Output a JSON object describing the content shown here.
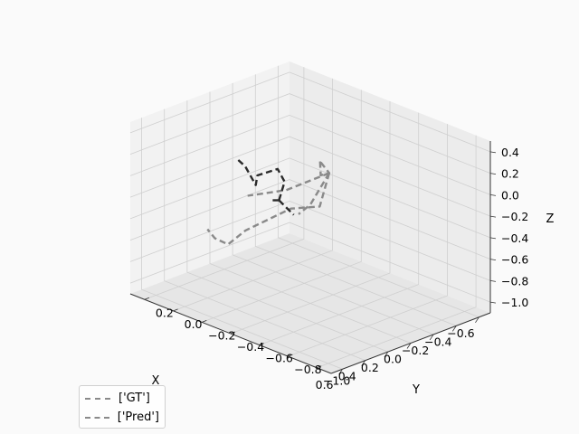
{
  "chart_data": {
    "type": "line3d",
    "title": "",
    "xlabel": "X",
    "ylabel": "Y",
    "zlabel": "Z",
    "xlim": [
      -0.7,
      0.7
    ],
    "ylim": [
      -1.1,
      0.3
    ],
    "zlim": [
      -1.1,
      0.5
    ],
    "xticks": [
      "−0.6",
      "−0.4",
      "−0.2",
      "0.0",
      "0.2",
      "0.4",
      "0.6"
    ],
    "yticks": [
      "−1.0",
      "−0.8",
      "−0.6",
      "−0.4",
      "−0.2",
      "0.0",
      "0.2"
    ],
    "zticks": [
      "0.4",
      "0.2",
      "0.0",
      "−0.2",
      "−0.4",
      "−0.6",
      "−0.8",
      "−1.0"
    ],
    "grid": true,
    "legend_position": "lower-left",
    "series": [
      {
        "name": "['GT']",
        "color": "#8a8a8a",
        "style": "dashed",
        "segments": [
          [
            [
              0.04,
              -0.5,
              0.29
            ],
            [
              0.06,
              -0.52,
              0.18
            ],
            [
              -0.04,
              -0.5,
              0.15
            ],
            [
              0.04,
              -0.5,
              0.29
            ]
          ],
          [
            [
              -0.04,
              -0.5,
              0.15
            ],
            [
              0.2,
              -0.39,
              0.03
            ],
            [
              0.4,
              -0.28,
              0.0
            ]
          ],
          [
            [
              -0.04,
              -0.5,
              0.15
            ],
            [
              0.0,
              -0.4,
              -0.18
            ],
            [
              0.04,
              -0.35,
              -0.28
            ]
          ],
          [
            [
              -0.04,
              -0.5,
              0.15
            ],
            [
              -0.02,
              -0.45,
              -0.18
            ],
            [
              0.12,
              -0.36,
              -0.19
            ],
            [
              0.28,
              -0.17,
              -0.43
            ],
            [
              0.37,
              -0.12,
              -0.55
            ],
            [
              0.36,
              -0.02,
              -0.55
            ],
            [
              0.4,
              0.0,
              -0.46
            ]
          ]
        ]
      },
      {
        "name": "['Pred']",
        "color": "#2b2b2b",
        "style": "dashed",
        "segments": [
          [
            [
              0.25,
              -0.38,
              -0.05
            ],
            [
              0.1,
              -0.3,
              0.02
            ],
            [
              0.06,
              -0.22,
              0.08
            ],
            [
              0.15,
              -0.15,
              0.02
            ],
            [
              0.0,
              -0.02,
              -0.2
            ],
            [
              -0.02,
              0.07,
              -0.08
            ],
            [
              -0.06,
              0.15,
              -0.08
            ]
          ],
          [
            [
              0.25,
              -0.38,
              -0.05
            ],
            [
              0.3,
              -0.36,
              -0.04
            ]
          ],
          [
            [
              0.25,
              -0.38,
              -0.05
            ],
            [
              0.07,
              -0.34,
              -0.28
            ]
          ]
        ]
      }
    ]
  }
}
